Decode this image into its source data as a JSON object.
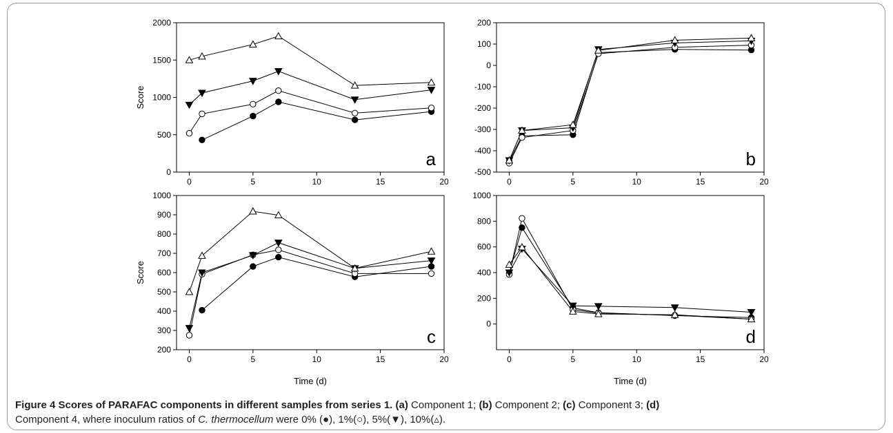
{
  "chart_data": [
    {
      "panel_label": "a",
      "type": "line",
      "ylabel": "Score",
      "xlabel": "",
      "xlim": [
        -1,
        20
      ],
      "ylim": [
        0,
        2000
      ],
      "xticks": [
        "0",
        "5",
        "10",
        "15",
        "20"
      ],
      "yticks": [
        "0",
        "500",
        "1000",
        "1500",
        "2000"
      ],
      "series": [
        {
          "marker": "filled-circle",
          "x": [
            1,
            5,
            7,
            13,
            19
          ],
          "y": [
            430,
            750,
            940,
            700,
            810
          ]
        },
        {
          "marker": "open-circle",
          "x": [
            0,
            1,
            5,
            7,
            13,
            19
          ],
          "y": [
            520,
            780,
            910,
            1090,
            790,
            860
          ]
        },
        {
          "marker": "filled-triangle-down",
          "x": [
            0,
            1,
            5,
            7,
            13,
            19
          ],
          "y": [
            900,
            1060,
            1220,
            1350,
            970,
            1100
          ]
        },
        {
          "marker": "open-triangle-up",
          "x": [
            0,
            1,
            5,
            7,
            13,
            19
          ],
          "y": [
            1500,
            1550,
            1710,
            1820,
            1160,
            1200
          ]
        }
      ]
    },
    {
      "panel_label": "b",
      "type": "line",
      "ylabel": "",
      "xlabel": "",
      "xlim": [
        -1,
        20
      ],
      "ylim": [
        -500,
        200
      ],
      "xticks": [
        "0",
        "5",
        "10",
        "15",
        "20"
      ],
      "yticks": [
        "-500",
        "-400",
        "-300",
        "-200",
        "-100",
        "0",
        "100",
        "200"
      ],
      "series": [
        {
          "marker": "filled-circle",
          "x": [
            0,
            1,
            5,
            7,
            13,
            19
          ],
          "y": [
            -450,
            -330,
            -325,
            60,
            75,
            72
          ]
        },
        {
          "marker": "open-circle",
          "x": [
            0,
            1,
            5,
            7,
            13,
            19
          ],
          "y": [
            -458,
            -338,
            -305,
            55,
            85,
            95
          ]
        },
        {
          "marker": "filled-triangle-down",
          "x": [
            0,
            1,
            5,
            7,
            13,
            19
          ],
          "y": [
            -445,
            -305,
            -292,
            75,
            105,
            115
          ]
        },
        {
          "marker": "open-triangle-up",
          "x": [
            0,
            1,
            5,
            7,
            13,
            19
          ],
          "y": [
            -445,
            -305,
            -278,
            70,
            118,
            128
          ]
        }
      ]
    },
    {
      "panel_label": "c",
      "type": "line",
      "ylabel": "Score",
      "xlabel": "Time (d)",
      "xlim": [
        -1,
        20
      ],
      "ylim": [
        200,
        1000
      ],
      "xticks": [
        "0",
        "5",
        "10",
        "15",
        "20"
      ],
      "yticks": [
        "200",
        "300",
        "400",
        "500",
        "600",
        "700",
        "800",
        "900",
        "1000"
      ],
      "series": [
        {
          "marker": "filled-circle",
          "x": [
            1,
            5,
            7,
            13,
            19
          ],
          "y": [
            405,
            632,
            680,
            578,
            632
          ]
        },
        {
          "marker": "open-circle",
          "x": [
            0,
            1,
            5,
            7,
            13,
            19
          ],
          "y": [
            275,
            592,
            692,
            718,
            595,
            595
          ]
        },
        {
          "marker": "filled-triangle-down",
          "x": [
            0,
            1,
            5,
            7,
            13,
            19
          ],
          "y": [
            312,
            600,
            690,
            755,
            622,
            662
          ]
        },
        {
          "marker": "open-triangle-up",
          "x": [
            0,
            1,
            5,
            7,
            13,
            19
          ],
          "y": [
            500,
            688,
            918,
            898,
            622,
            710
          ]
        }
      ]
    },
    {
      "panel_label": "d",
      "type": "line",
      "ylabel": "",
      "xlabel": "Time (d)",
      "xlim": [
        -1,
        20
      ],
      "ylim": [
        -200,
        1000
      ],
      "xticks": [
        "0",
        "5",
        "10",
        "15",
        "20"
      ],
      "yticks": [
        "0",
        "200",
        "400",
        "600",
        "800",
        "1000"
      ],
      "series": [
        {
          "marker": "filled-circle",
          "x": [
            0,
            1,
            5,
            7,
            13,
            19
          ],
          "y": [
            395,
            750,
            125,
            88,
            65,
            50
          ]
        },
        {
          "marker": "open-circle",
          "x": [
            0,
            1,
            5,
            7,
            13,
            19
          ],
          "y": [
            385,
            822,
            112,
            85,
            68,
            38
          ]
        },
        {
          "marker": "filled-triangle-down",
          "x": [
            0,
            1,
            5,
            7,
            13,
            19
          ],
          "y": [
            400,
            585,
            142,
            138,
            128,
            92
          ]
        },
        {
          "marker": "open-triangle-up",
          "x": [
            0,
            1,
            5,
            7,
            13,
            19
          ],
          "y": [
            462,
            598,
            98,
            78,
            72,
            38
          ]
        }
      ]
    }
  ],
  "caption": {
    "title": "Figure 4 Scores of PARAFAC components in different samples from series 1.",
    "a_label": "(a)",
    "a_text": " Component 1; ",
    "b_label": "(b)",
    "b_text": " Component 2; ",
    "c_label": "(c)",
    "c_text": " Component 3; ",
    "d_label": "(d)",
    "d_text": " Component 4, where inoculum ratios of ",
    "organism": "C. thermocellum",
    "ratios_text": " were 0% (●), 1%(○), 5%(▼), 10%(▵)."
  }
}
